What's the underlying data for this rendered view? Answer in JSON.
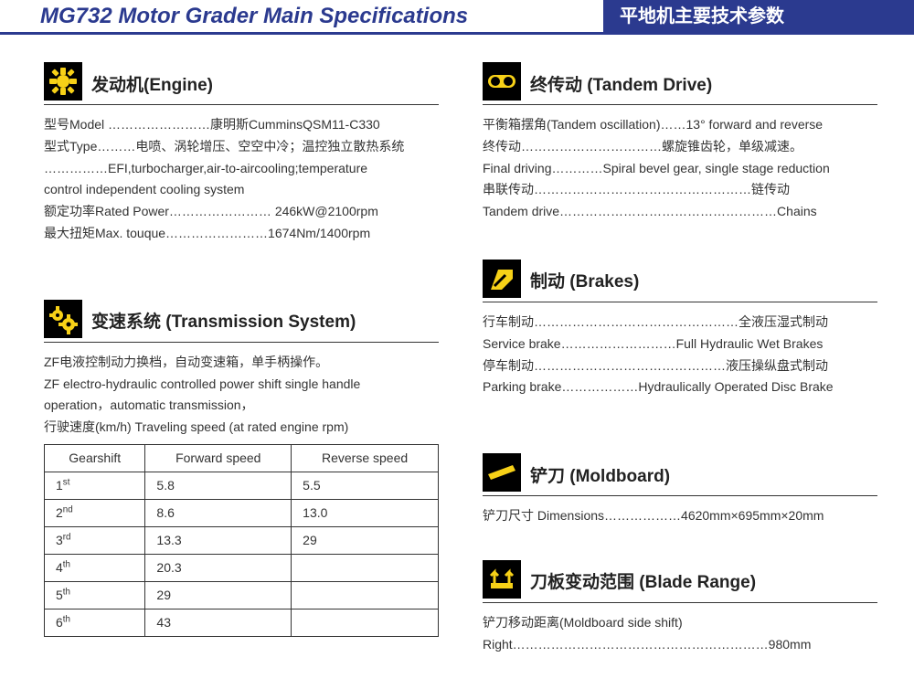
{
  "header": {
    "title": "MG732 Motor Grader Main Specifications",
    "subtitle": "平地机主要技术参数"
  },
  "colors": {
    "brand_blue": "#2b3a8f",
    "icon_bg": "#000000",
    "icon_fg": "#f7d117",
    "text": "#333333",
    "border": "#333333"
  },
  "sections": {
    "engine": {
      "title": "发动机(Engine)",
      "lines": [
        "型号Model ……………………康明斯CumminsQSM11-C330",
        "型式Type………电喷、涡轮增压、空空中冷；温控独立散热系统",
        "……………EFI,turbocharger,air-to-aircooling;temperature",
        "control independent cooling system",
        "额定功率Rated Power……………………  246kW@2100rpm",
        "最大扭矩Max. touque……………………1674Nm/1400rpm"
      ]
    },
    "transmission": {
      "title": "变速系统  (Transmission System)",
      "lines": [
        "ZF电液控制动力换档，自动变速箱，单手柄操作。",
        "ZF electro-hydraulic controlled power shift single handle",
        "operation，automatic  transmission，",
        "行驶速度(km/h)   Traveling speed (at rated engine rpm)"
      ],
      "table": {
        "headers": [
          "Gearshift",
          "Forward speed",
          "Reverse speed"
        ],
        "rows": [
          [
            "1",
            "st",
            "5.8",
            "5.5"
          ],
          [
            "2",
            "nd",
            "8.6",
            "13.0"
          ],
          [
            "3",
            "rd",
            "13.3",
            "29"
          ],
          [
            "4",
            "th",
            "20.3",
            ""
          ],
          [
            "5",
            "th",
            "29",
            ""
          ],
          [
            "6",
            "th",
            "43",
            ""
          ]
        ]
      }
    },
    "tandem": {
      "title": "终传动  (Tandem Drive)",
      "lines": [
        "平衡箱摆角(Tandem oscillation)……13°  forward and reverse",
        "终传动……………………………螺旋锥齿轮，单级减速。",
        "Final driving…………Spiral bevel gear, single stage reduction",
        "串联传动……………………………………………链传动",
        "Tandem drive……………………………………………Chains"
      ]
    },
    "brakes": {
      "title": "制动  (Brakes)",
      "lines": [
        "行车制动…………………………………………全液压湿式制动",
        "Service brake………………………Full Hydraulic Wet Brakes",
        "停车制动………………………………………液压操纵盘式制动",
        "Parking brake………………Hydraulically Operated Disc Brake"
      ]
    },
    "moldboard": {
      "title": "铲刀  (Moldboard)",
      "lines": [
        "铲刀尺寸 Dimensions………………4620mm×695mm×20mm"
      ]
    },
    "blade": {
      "title": "刀板变动范围  (Blade Range)",
      "lines": [
        "铲刀移动距离(Moldboard side shift)",
        "Right……………………………………………………980mm"
      ]
    }
  }
}
